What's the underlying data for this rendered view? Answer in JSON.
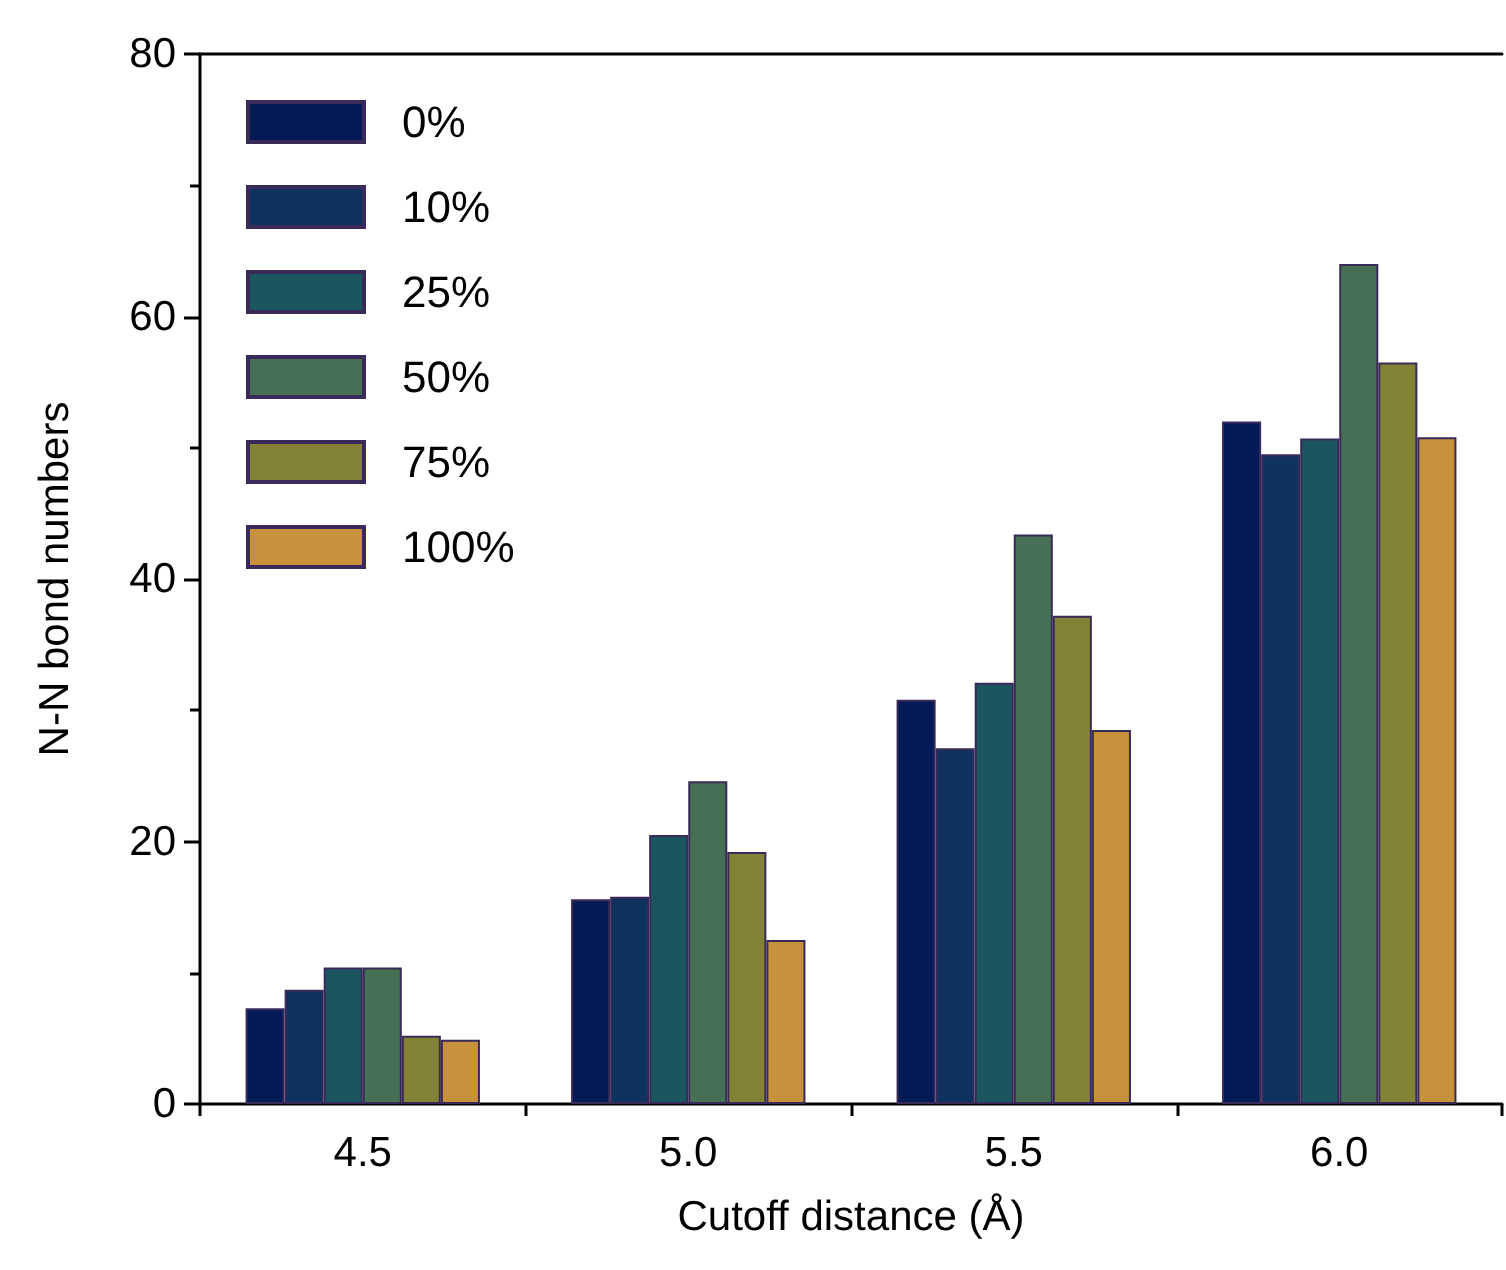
{
  "chart_data": {
    "type": "bar",
    "xlabel": "Cutoff distance (Å)",
    "ylabel": "N-N bond numbers",
    "categories": [
      "4.5",
      "5.0",
      "5.5",
      "6.0"
    ],
    "series": [
      {
        "name": "0%",
        "color": "#021a56",
        "values": [
          7.3,
          15.6,
          30.8,
          52.0
        ]
      },
      {
        "name": "10%",
        "color": "#10325e",
        "values": [
          8.7,
          15.8,
          27.1,
          49.5
        ]
      },
      {
        "name": "25%",
        "color": "#1b5660",
        "values": [
          10.4,
          20.5,
          32.1,
          50.7
        ]
      },
      {
        "name": "50%",
        "color": "#467053",
        "values": [
          10.4,
          24.6,
          43.4,
          64.0
        ]
      },
      {
        "name": "75%",
        "color": "#848234",
        "values": [
          5.2,
          19.2,
          37.2,
          56.5
        ]
      },
      {
        "name": "100%",
        "color": "#c8913c",
        "values": [
          4.9,
          12.5,
          28.5,
          50.8
        ]
      }
    ],
    "ylim": [
      0,
      80
    ],
    "yticks": [
      0,
      20,
      40,
      60,
      80
    ],
    "grid": false,
    "legend": "top left"
  }
}
